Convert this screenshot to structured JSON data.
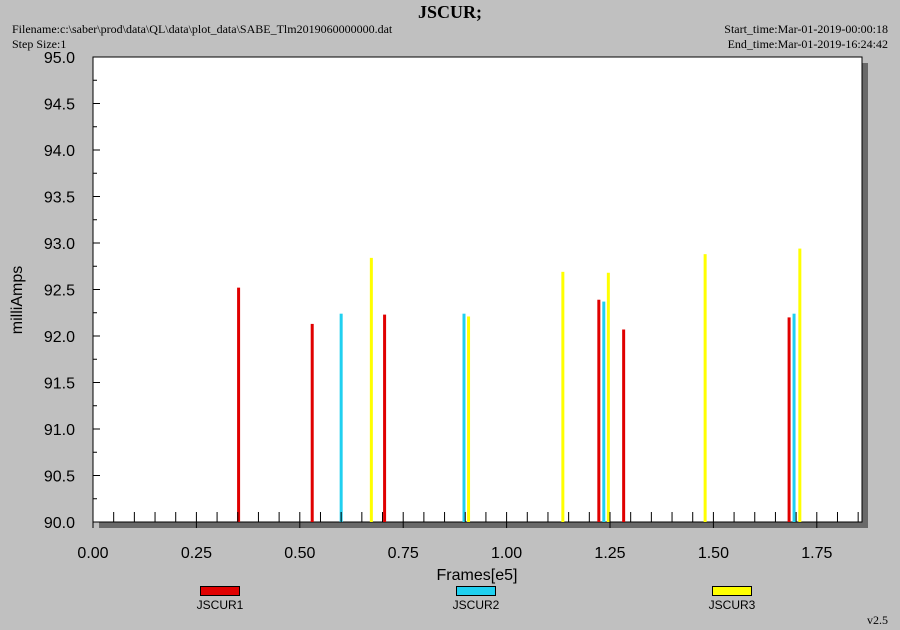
{
  "header": {
    "title": "JSCUR;",
    "filename": "Filename:c:\\saber\\prod\\data\\QL\\data\\plot_data\\SABE_Tlm2019060000000.dat",
    "step_size": "Step Size:1",
    "start_time": "Start_time:Mar-01-2019-00:00:18",
    "end_time": "End_time:Mar-01-2019-16:24:42"
  },
  "version": "v2.5",
  "chart_data": {
    "type": "bar",
    "xlabel": "Frames[e5]",
    "ylabel": "milliAmps",
    "xlim": [
      0.0,
      1.86
    ],
    "ylim": [
      90.0,
      95.0
    ],
    "x_ticks": [
      "0.00",
      "0.25",
      "0.50",
      "0.75",
      "1.00",
      "1.25",
      "1.50",
      "1.75"
    ],
    "y_ticks": [
      "90.0",
      "90.5",
      "91.0",
      "91.5",
      "92.0",
      "92.5",
      "93.0",
      "93.5",
      "94.0",
      "94.5",
      "95.0"
    ],
    "grid": false,
    "legend_position": "bottom",
    "series": [
      {
        "name": "JSCUR1",
        "color": "#e00000",
        "x": [
          0.352,
          0.53,
          0.705,
          1.223,
          1.283,
          1.683
        ],
        "y": [
          92.52,
          92.13,
          92.23,
          92.39,
          92.07,
          92.2
        ]
      },
      {
        "name": "JSCUR2",
        "color": "#20d0f0",
        "x": [
          0.6,
          0.897,
          1.235,
          1.695
        ],
        "y": [
          92.24,
          92.24,
          92.37,
          92.24
        ]
      },
      {
        "name": "JSCUR3",
        "color": "#ffff00",
        "x": [
          0.673,
          0.908,
          1.136,
          1.246,
          1.48,
          1.709
        ],
        "y": [
          92.84,
          92.21,
          92.69,
          92.68,
          92.88,
          92.94
        ]
      }
    ]
  }
}
